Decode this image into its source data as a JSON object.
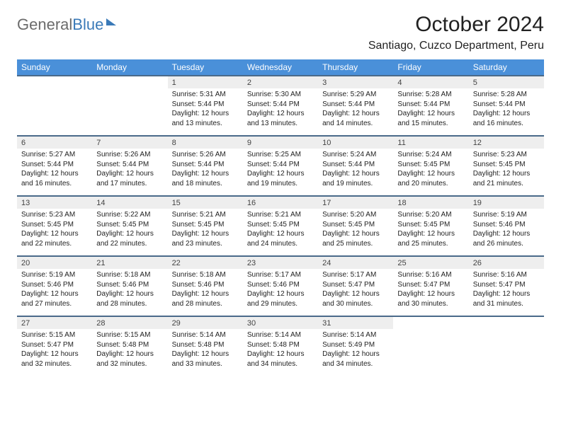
{
  "logo": {
    "part1": "General",
    "part2": "Blue"
  },
  "title": "October 2024",
  "location": "Santiago, Cuzco Department, Peru",
  "colors": {
    "header_bg": "#4a90d9",
    "header_text": "#ffffff",
    "week_border": "#4a6a8a",
    "daynum_bg": "#eeeeee",
    "logo_gray": "#6b6b6b",
    "logo_blue": "#3a7ab8"
  },
  "dow": [
    "Sunday",
    "Monday",
    "Tuesday",
    "Wednesday",
    "Thursday",
    "Friday",
    "Saturday"
  ],
  "weeks": [
    [
      {
        "n": "",
        "sr": "",
        "ss": "",
        "dl": ""
      },
      {
        "n": "",
        "sr": "",
        "ss": "",
        "dl": ""
      },
      {
        "n": "1",
        "sr": "5:31 AM",
        "ss": "5:44 PM",
        "dl": "12 hours and 13 minutes."
      },
      {
        "n": "2",
        "sr": "5:30 AM",
        "ss": "5:44 PM",
        "dl": "12 hours and 13 minutes."
      },
      {
        "n": "3",
        "sr": "5:29 AM",
        "ss": "5:44 PM",
        "dl": "12 hours and 14 minutes."
      },
      {
        "n": "4",
        "sr": "5:28 AM",
        "ss": "5:44 PM",
        "dl": "12 hours and 15 minutes."
      },
      {
        "n": "5",
        "sr": "5:28 AM",
        "ss": "5:44 PM",
        "dl": "12 hours and 16 minutes."
      }
    ],
    [
      {
        "n": "6",
        "sr": "5:27 AM",
        "ss": "5:44 PM",
        "dl": "12 hours and 16 minutes."
      },
      {
        "n": "7",
        "sr": "5:26 AM",
        "ss": "5:44 PM",
        "dl": "12 hours and 17 minutes."
      },
      {
        "n": "8",
        "sr": "5:26 AM",
        "ss": "5:44 PM",
        "dl": "12 hours and 18 minutes."
      },
      {
        "n": "9",
        "sr": "5:25 AM",
        "ss": "5:44 PM",
        "dl": "12 hours and 19 minutes."
      },
      {
        "n": "10",
        "sr": "5:24 AM",
        "ss": "5:44 PM",
        "dl": "12 hours and 19 minutes."
      },
      {
        "n": "11",
        "sr": "5:24 AM",
        "ss": "5:45 PM",
        "dl": "12 hours and 20 minutes."
      },
      {
        "n": "12",
        "sr": "5:23 AM",
        "ss": "5:45 PM",
        "dl": "12 hours and 21 minutes."
      }
    ],
    [
      {
        "n": "13",
        "sr": "5:23 AM",
        "ss": "5:45 PM",
        "dl": "12 hours and 22 minutes."
      },
      {
        "n": "14",
        "sr": "5:22 AM",
        "ss": "5:45 PM",
        "dl": "12 hours and 22 minutes."
      },
      {
        "n": "15",
        "sr": "5:21 AM",
        "ss": "5:45 PM",
        "dl": "12 hours and 23 minutes."
      },
      {
        "n": "16",
        "sr": "5:21 AM",
        "ss": "5:45 PM",
        "dl": "12 hours and 24 minutes."
      },
      {
        "n": "17",
        "sr": "5:20 AM",
        "ss": "5:45 PM",
        "dl": "12 hours and 25 minutes."
      },
      {
        "n": "18",
        "sr": "5:20 AM",
        "ss": "5:45 PM",
        "dl": "12 hours and 25 minutes."
      },
      {
        "n": "19",
        "sr": "5:19 AM",
        "ss": "5:46 PM",
        "dl": "12 hours and 26 minutes."
      }
    ],
    [
      {
        "n": "20",
        "sr": "5:19 AM",
        "ss": "5:46 PM",
        "dl": "12 hours and 27 minutes."
      },
      {
        "n": "21",
        "sr": "5:18 AM",
        "ss": "5:46 PM",
        "dl": "12 hours and 28 minutes."
      },
      {
        "n": "22",
        "sr": "5:18 AM",
        "ss": "5:46 PM",
        "dl": "12 hours and 28 minutes."
      },
      {
        "n": "23",
        "sr": "5:17 AM",
        "ss": "5:46 PM",
        "dl": "12 hours and 29 minutes."
      },
      {
        "n": "24",
        "sr": "5:17 AM",
        "ss": "5:47 PM",
        "dl": "12 hours and 30 minutes."
      },
      {
        "n": "25",
        "sr": "5:16 AM",
        "ss": "5:47 PM",
        "dl": "12 hours and 30 minutes."
      },
      {
        "n": "26",
        "sr": "5:16 AM",
        "ss": "5:47 PM",
        "dl": "12 hours and 31 minutes."
      }
    ],
    [
      {
        "n": "27",
        "sr": "5:15 AM",
        "ss": "5:47 PM",
        "dl": "12 hours and 32 minutes."
      },
      {
        "n": "28",
        "sr": "5:15 AM",
        "ss": "5:48 PM",
        "dl": "12 hours and 32 minutes."
      },
      {
        "n": "29",
        "sr": "5:14 AM",
        "ss": "5:48 PM",
        "dl": "12 hours and 33 minutes."
      },
      {
        "n": "30",
        "sr": "5:14 AM",
        "ss": "5:48 PM",
        "dl": "12 hours and 34 minutes."
      },
      {
        "n": "31",
        "sr": "5:14 AM",
        "ss": "5:49 PM",
        "dl": "12 hours and 34 minutes."
      },
      {
        "n": "",
        "sr": "",
        "ss": "",
        "dl": ""
      },
      {
        "n": "",
        "sr": "",
        "ss": "",
        "dl": ""
      }
    ]
  ],
  "labels": {
    "sunrise": "Sunrise: ",
    "sunset": "Sunset: ",
    "daylight": "Daylight: "
  }
}
